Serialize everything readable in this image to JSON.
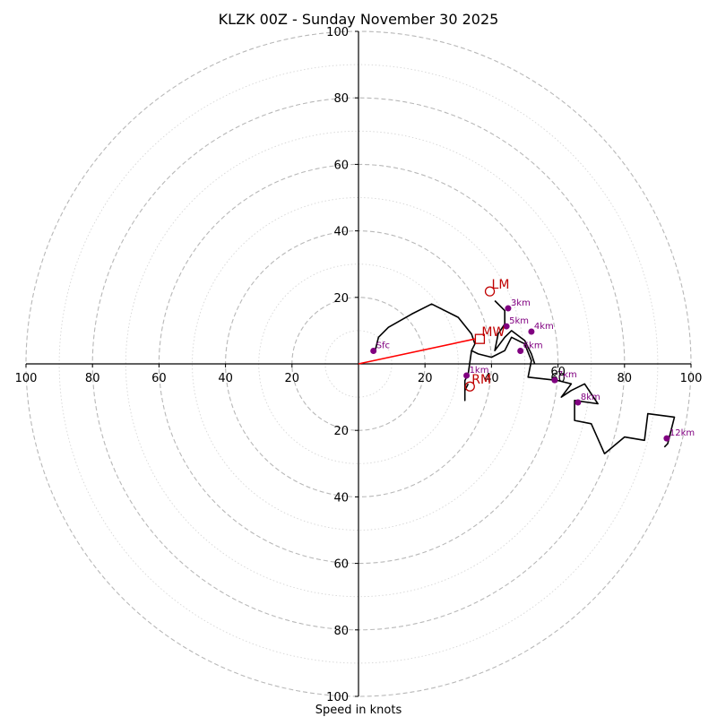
{
  "chart_data": {
    "type": "hodograph",
    "title": "KLZK 00Z - Sunday November 30 2025",
    "xlabel": "Speed in knots",
    "range": [
      -100,
      100
    ],
    "ring_major_step": 20,
    "ring_minor_step": 10,
    "tick_labels": {
      "x": [
        "100",
        "80",
        "60",
        "40",
        "20",
        "20",
        "40",
        "60",
        "80",
        "100"
      ],
      "y": [
        "100",
        "80",
        "60",
        "40",
        "20",
        "20",
        "40",
        "60",
        "80",
        "100"
      ]
    },
    "tick_values": [
      -100,
      -80,
      -60,
      -40,
      -20,
      20,
      40,
      60,
      80,
      100
    ],
    "hodograph_trace": [
      [
        5,
        4
      ],
      [
        6,
        8
      ],
      [
        9,
        11
      ],
      [
        16,
        15
      ],
      [
        22,
        18
      ],
      [
        30,
        14
      ],
      [
        34,
        9
      ],
      [
        35,
        6
      ],
      [
        34,
        4
      ],
      [
        36,
        3
      ],
      [
        40,
        2
      ],
      [
        44,
        4
      ],
      [
        46,
        8
      ],
      [
        50,
        6
      ],
      [
        52,
        1
      ],
      [
        51,
        -4
      ],
      [
        60,
        -5
      ],
      [
        64,
        -6
      ],
      [
        61,
        -10
      ],
      [
        64,
        -8
      ],
      [
        68,
        -6
      ],
      [
        70,
        -9
      ],
      [
        72,
        -12
      ],
      [
        65,
        -11
      ],
      [
        65,
        -17
      ],
      [
        70,
        -18
      ],
      [
        74,
        -27
      ],
      [
        80,
        -22
      ],
      [
        86,
        -23
      ],
      [
        87,
        -15
      ],
      [
        95,
        -16
      ],
      [
        93,
        -24
      ],
      [
        92,
        -25
      ]
    ],
    "hodograph_trace_2": [
      [
        34,
        4
      ],
      [
        33,
        -3
      ],
      [
        32,
        -5
      ],
      [
        32,
        -11
      ],
      [
        32,
        -8
      ],
      [
        33,
        -6
      ]
    ],
    "hodograph_trace_3": [
      [
        41,
        19
      ],
      [
        44,
        16
      ],
      [
        44,
        12
      ],
      [
        42,
        9
      ],
      [
        41,
        4
      ],
      [
        44,
        8
      ],
      [
        46,
        10
      ],
      [
        50,
        7
      ],
      [
        52,
        3
      ],
      [
        53,
        0
      ]
    ],
    "height_markers": [
      {
        "label": "Sfc",
        "u": 4.5,
        "v": 3.9
      },
      {
        "label": "1km",
        "u": 32.5,
        "v": -3.5
      },
      {
        "label": "3km",
        "u": 45,
        "v": 16.7
      },
      {
        "label": "4km",
        "u": 52,
        "v": 9.7
      },
      {
        "label": "5km",
        "u": 44.5,
        "v": 11.3
      },
      {
        "label": "6km",
        "u": 48.7,
        "v": 3.9
      },
      {
        "label": "7km",
        "u": 59,
        "v": -4.9
      },
      {
        "label": "8km",
        "u": 66,
        "v": -11.6
      },
      {
        "label": "12km",
        "u": 92.7,
        "v": -22.4
      }
    ],
    "storm_motion_vector": {
      "from": [
        0,
        0
      ],
      "to": [
        35,
        7.5
      ]
    },
    "motion_markers": [
      {
        "label": "LM",
        "symbol": "circle",
        "u": 39.5,
        "v": 21.8
      },
      {
        "label": "MW",
        "symbol": "square",
        "u": 36.5,
        "v": 7.5
      },
      {
        "label": "RM",
        "symbol": "circle",
        "u": 33.5,
        "v": -6.8
      }
    ],
    "annotations": [
      {
        "label": "60",
        "u": 60,
        "v": -4
      }
    ],
    "colors": {
      "trace": "#000000",
      "height_marker": "#800080",
      "motion": "#c00000",
      "vector": "#ff0000",
      "ring_major": "#b8b8b8",
      "ring_minor": "#d6d6d6"
    }
  }
}
